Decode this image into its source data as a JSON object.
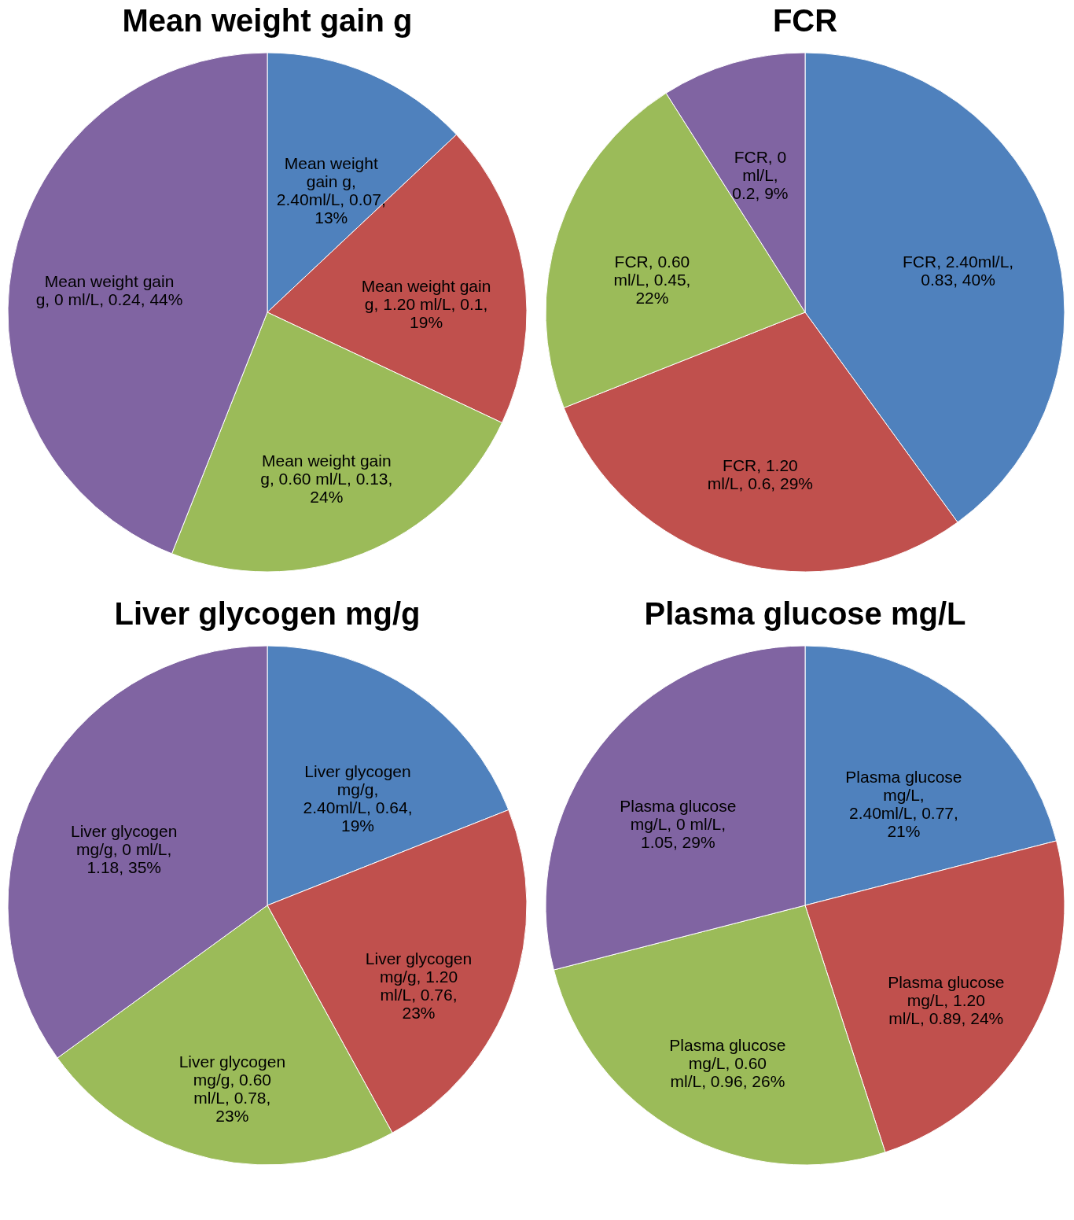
{
  "chart_data": [
    {
      "type": "pie",
      "title": "Mean weight gain g",
      "values": [
        13,
        19,
        24,
        44
      ],
      "colors": [
        "#4f81bd",
        "#c0504d",
        "#9bbb59",
        "#8064a2"
      ],
      "categories": [
        "Mean weight\ngain g,\n2.40ml/L, 0.07,\n13%",
        "Mean weight gain\ng, 1.20 ml/L, 0.1,\n19%",
        "Mean weight gain\ng, 0.60 ml/L, 0.13,\n24%",
        "Mean weight gain\ng, 0 ml/L, 0.24, 44%"
      ]
    },
    {
      "type": "pie",
      "title": "FCR",
      "values": [
        40,
        29,
        22,
        9
      ],
      "colors": [
        "#4f81bd",
        "#c0504d",
        "#9bbb59",
        "#8064a2"
      ],
      "categories": [
        "FCR, 2.40ml/L,\n0.83, 40%",
        "FCR, 1.20\nml/L, 0.6, 29%",
        "FCR, 0.60\nml/L, 0.45,\n22%",
        "FCR, 0\nml/L,\n0.2, 9%"
      ]
    },
    {
      "type": "pie",
      "title": "Liver glycogen mg/g",
      "values": [
        19,
        23,
        23,
        35
      ],
      "colors": [
        "#4f81bd",
        "#c0504d",
        "#9bbb59",
        "#8064a2"
      ],
      "categories": [
        "Liver glycogen\nmg/g,\n2.40ml/L, 0.64,\n19%",
        "Liver glycogen\nmg/g, 1.20\nml/L, 0.76,\n23%",
        "Liver glycogen\nmg/g, 0.60\nml/L, 0.78,\n23%",
        "Liver glycogen\nmg/g, 0 ml/L,\n1.18, 35%"
      ]
    },
    {
      "type": "pie",
      "title": "Plasma glucose mg/L",
      "values": [
        21,
        24,
        26,
        29
      ],
      "colors": [
        "#4f81bd",
        "#c0504d",
        "#9bbb59",
        "#8064a2"
      ],
      "categories": [
        "Plasma glucose\nmg/L,\n2.40ml/L, 0.77,\n21%",
        "Plasma glucose\nmg/L, 1.20\nml/L, 0.89, 24%",
        "Plasma glucose\nmg/L, 0.60\nml/L, 0.96, 26%",
        "Plasma glucose\nmg/L, 0 ml/L,\n1.05, 29%"
      ]
    }
  ]
}
